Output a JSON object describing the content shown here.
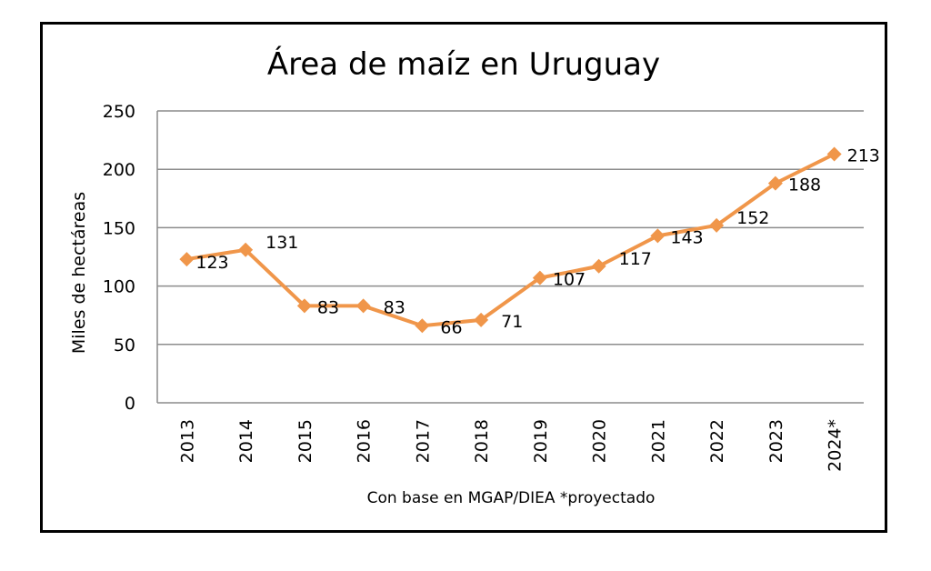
{
  "chart_data": {
    "type": "line",
    "title": "Área de maíz en Uruguay",
    "xlabel": "Con base en MGAP/DIEA *proyectado",
    "ylabel": "Miles de hectáreas",
    "categories": [
      "2013",
      "2014",
      "2015",
      "2016",
      "2017",
      "2018",
      "2019",
      "2020",
      "2021",
      "2022",
      "2023",
      "2024*"
    ],
    "series": [
      {
        "name": "Área de maíz",
        "values": [
          123,
          131,
          83,
          83,
          66,
          71,
          107,
          117,
          143,
          152,
          188,
          213
        ],
        "color": "#F0964A"
      }
    ],
    "ylim": [
      0,
      250
    ],
    "yticks": [
      0,
      50,
      100,
      150,
      200,
      250
    ],
    "grid": true,
    "legend": "none",
    "data_labels": true
  }
}
